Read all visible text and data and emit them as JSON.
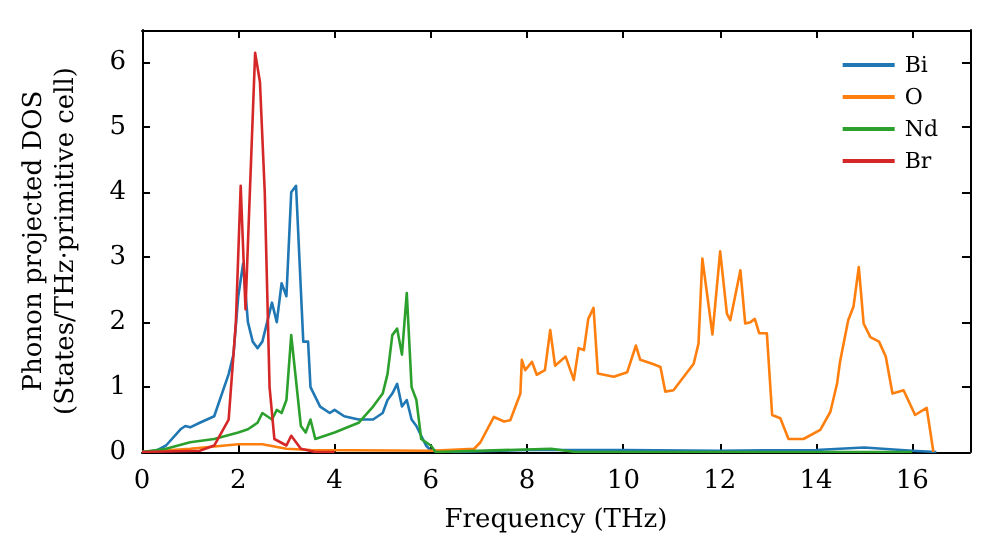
{
  "chart_data": {
    "type": "line",
    "xlabel": "Frequency (THz)",
    "ylabel": "Phonon projected DOS\n(States/THz·primitive cell)",
    "xlim": [
      0,
      17.2
    ],
    "ylim": [
      0,
      6.5
    ],
    "xticks": [
      0,
      2,
      4,
      6,
      8,
      10,
      12,
      14,
      16
    ],
    "yticks": [
      0,
      1,
      2,
      3,
      4,
      5,
      6
    ],
    "legend": "top right",
    "grid": false,
    "marker": "none",
    "line_style": "solid",
    "series": [
      {
        "name": "Bi",
        "color": "#1f77b4",
        "x": [
          0,
          0.3,
          0.5,
          0.8,
          0.9,
          1.0,
          1.2,
          1.5,
          1.8,
          1.9,
          2.0,
          2.1,
          2.2,
          2.3,
          2.4,
          2.5,
          2.7,
          2.8,
          2.9,
          3.0,
          3.1,
          3.2,
          3.3,
          3.35,
          3.45,
          3.5,
          3.7,
          3.9,
          4.0,
          4.2,
          4.5,
          4.8,
          5.0,
          5.1,
          5.2,
          5.3,
          5.4,
          5.5,
          5.6,
          5.7,
          5.9,
          6.0,
          6.5,
          8,
          10,
          12,
          14,
          15,
          16,
          16.5
        ],
        "values": [
          0,
          0.02,
          0.1,
          0.35,
          0.4,
          0.38,
          0.45,
          0.55,
          1.2,
          1.5,
          2.4,
          2.9,
          2.0,
          1.7,
          1.6,
          1.7,
          2.3,
          2.0,
          2.6,
          2.4,
          4.0,
          4.1,
          2.5,
          1.7,
          1.7,
          1.0,
          0.7,
          0.6,
          0.65,
          0.55,
          0.5,
          0.5,
          0.6,
          0.8,
          0.9,
          1.05,
          0.7,
          0.8,
          0.5,
          0.4,
          0.1,
          0.02,
          0,
          0.03,
          0.03,
          0.02,
          0.03,
          0.07,
          0.02,
          0
        ]
      },
      {
        "name": "O",
        "color": "#ff7f0e",
        "x": [
          0,
          1,
          2,
          2.5,
          3,
          3.5,
          6,
          6.9,
          7.03,
          7.31,
          7.52,
          7.65,
          7.86,
          7.89,
          7.96,
          8.1,
          8.2,
          8.37,
          8.48,
          8.58,
          8.8,
          8.97,
          9.07,
          9.18,
          9.27,
          9.38,
          9.47,
          9.8,
          10.08,
          10.26,
          10.35,
          10.6,
          10.77,
          10.87,
          11.04,
          11.46,
          11.56,
          11.64,
          11.85,
          12.01,
          12.15,
          12.22,
          12.43,
          12.53,
          12.64,
          12.73,
          12.82,
          12.98,
          13.09,
          13.26,
          13.43,
          13.74,
          14.09,
          14.3,
          14.44,
          14.5,
          14.67,
          14.78,
          14.89,
          14.99,
          15.13,
          15.31,
          15.45,
          15.59,
          15.82,
          16.06,
          16.3,
          16.44
        ],
        "values": [
          0,
          0.05,
          0.12,
          0.12,
          0.05,
          0.03,
          0.02,
          0.05,
          0.15,
          0.54,
          0.47,
          0.49,
          0.9,
          1.42,
          1.26,
          1.39,
          1.19,
          1.26,
          1.88,
          1.33,
          1.47,
          1.11,
          1.6,
          1.57,
          2.05,
          2.22,
          1.21,
          1.16,
          1.23,
          1.64,
          1.42,
          1.36,
          1.31,
          0.93,
          0.95,
          1.36,
          1.67,
          2.98,
          1.81,
          3.09,
          2.13,
          2.03,
          2.8,
          1.98,
          2.0,
          2.05,
          1.83,
          1.83,
          0.57,
          0.52,
          0.2,
          0.2,
          0.34,
          0.62,
          1.06,
          1.39,
          2.03,
          2.24,
          2.85,
          1.98,
          1.77,
          1.7,
          1.47,
          0.9,
          0.95,
          0.57,
          0.68,
          0
        ]
      },
      {
        "name": "Nd",
        "color": "#2ca02c",
        "x": [
          0,
          0.5,
          1,
          1.5,
          2.0,
          2.2,
          2.4,
          2.5,
          2.7,
          2.8,
          2.9,
          3.0,
          3.1,
          3.2,
          3.3,
          3.4,
          3.5,
          3.6,
          4.0,
          4.5,
          4.8,
          5.0,
          5.1,
          5.2,
          5.3,
          5.4,
          5.5,
          5.6,
          5.7,
          5.8,
          6.0,
          6.1,
          8.5,
          9,
          16
        ],
        "values": [
          0,
          0.05,
          0.15,
          0.2,
          0.3,
          0.35,
          0.45,
          0.6,
          0.5,
          0.65,
          0.6,
          0.8,
          1.8,
          1.1,
          0.4,
          0.3,
          0.5,
          0.2,
          0.3,
          0.45,
          0.7,
          0.9,
          1.2,
          1.8,
          1.9,
          1.5,
          2.45,
          1.0,
          0.8,
          0.2,
          0.1,
          0,
          0.05,
          0,
          0
        ]
      },
      {
        "name": "Br",
        "color": "#d62728",
        "x": [
          0,
          1.2,
          1.5,
          1.8,
          1.95,
          2.05,
          2.15,
          2.2,
          2.35,
          2.45,
          2.55,
          2.65,
          2.75,
          3.0,
          3.1,
          3.2,
          3.3,
          3.6,
          4.0
        ],
        "values": [
          0,
          0.02,
          0.1,
          0.5,
          2.0,
          4.1,
          2.2,
          3.2,
          6.15,
          5.7,
          4.0,
          1.0,
          0.2,
          0.1,
          0.25,
          0.15,
          0.05,
          0,
          0
        ]
      }
    ]
  }
}
